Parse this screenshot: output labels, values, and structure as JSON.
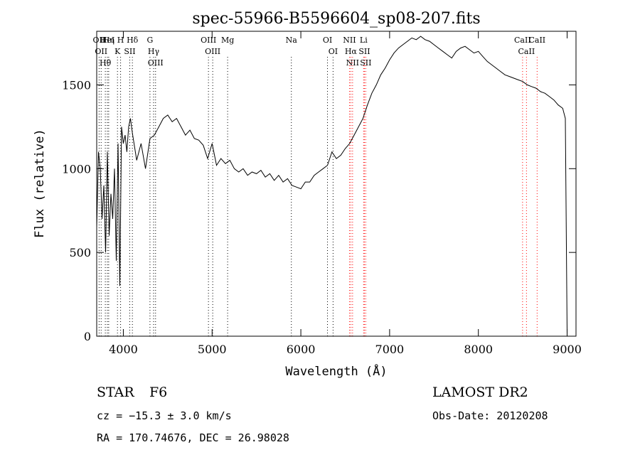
{
  "chart_data": {
    "type": "line",
    "title": "spec-55966-B5596604_sp08-207.fits",
    "xlabel": "Wavelength (Å)",
    "ylabel": "Flux (relative)",
    "xlim": [
      3700,
      9100
    ],
    "ylim": [
      0,
      1820
    ],
    "x_ticks": [
      4000,
      5000,
      6000,
      7000,
      8000,
      9000
    ],
    "y_ticks": [
      0,
      500,
      1000,
      1500
    ],
    "grid": false,
    "line_color": "#000000",
    "marker_color": "#ff0000",
    "series": [
      {
        "x": [
          3700,
          3720,
          3740,
          3760,
          3780,
          3800,
          3820,
          3840,
          3860,
          3880,
          3900,
          3920,
          3940,
          3960,
          3980,
          4000,
          4020,
          4040,
          4060,
          4080,
          4100,
          4150,
          4200,
          4250,
          4300,
          4350,
          4400,
          4450,
          4500,
          4550,
          4600,
          4650,
          4700,
          4750,
          4800,
          4850,
          4900,
          4950,
          5000,
          5050,
          5100,
          5150,
          5200,
          5250,
          5300,
          5350,
          5400,
          5450,
          5500,
          5550,
          5600,
          5650,
          5700,
          5750,
          5800,
          5850,
          5900,
          5950,
          6000,
          6050,
          6100,
          6150,
          6200,
          6250,
          6300,
          6350,
          6400,
          6450,
          6500,
          6550,
          6600,
          6650,
          6700,
          6750,
          6800,
          6850,
          6900,
          6950,
          7000,
          7050,
          7100,
          7150,
          7200,
          7250,
          7300,
          7350,
          7400,
          7450,
          7500,
          7550,
          7600,
          7650,
          7700,
          7750,
          7800,
          7850,
          7900,
          7950,
          8000,
          8050,
          8100,
          8150,
          8200,
          8250,
          8300,
          8350,
          8400,
          8450,
          8500,
          8550,
          8600,
          8650,
          8700,
          8750,
          8800,
          8850,
          8900,
          8950,
          8980,
          9000
        ],
        "y": [
          650,
          1100,
          1000,
          700,
          900,
          500,
          1100,
          600,
          850,
          700,
          1000,
          450,
          1150,
          300,
          1250,
          1150,
          1200,
          1100,
          1250,
          1300,
          1220,
          1050,
          1150,
          1000,
          1180,
          1200,
          1250,
          1300,
          1320,
          1280,
          1300,
          1250,
          1200,
          1230,
          1180,
          1170,
          1140,
          1060,
          1150,
          1020,
          1060,
          1030,
          1050,
          1000,
          980,
          1000,
          960,
          980,
          970,
          990,
          950,
          970,
          930,
          960,
          920,
          940,
          900,
          890,
          880,
          920,
          920,
          960,
          980,
          1000,
          1020,
          1100,
          1060,
          1080,
          1120,
          1150,
          1200,
          1250,
          1300,
          1380,
          1450,
          1500,
          1560,
          1600,
          1650,
          1690,
          1720,
          1740,
          1760,
          1780,
          1770,
          1790,
          1770,
          1760,
          1740,
          1720,
          1700,
          1680,
          1660,
          1700,
          1720,
          1730,
          1710,
          1690,
          1700,
          1670,
          1640,
          1620,
          1600,
          1580,
          1560,
          1550,
          1540,
          1530,
          1520,
          1500,
          1490,
          1480,
          1460,
          1450,
          1430,
          1410,
          1380,
          1360,
          1300,
          20
        ]
      }
    ],
    "line_markers": [
      {
        "wavelength": 3727,
        "labels": [
          "OII"
        ],
        "color": "#000000"
      },
      {
        "wavelength": 3750,
        "labels": [
          "OII"
        ],
        "color": "#000000"
      },
      {
        "wavelength": 3797,
        "labels": [
          "Hθ"
        ],
        "color": "#000000"
      },
      {
        "wavelength": 3820,
        "labels": [
          "HeI"
        ],
        "color": "#000000"
      },
      {
        "wavelength": 3835,
        "labels": [
          "Hη"
        ],
        "color": "#000000"
      },
      {
        "wavelength": 3934,
        "labels": [
          "K"
        ],
        "color": "#000000"
      },
      {
        "wavelength": 3969,
        "labels": [
          "H"
        ],
        "color": "#000000"
      },
      {
        "wavelength": 4072,
        "labels": [
          "SII"
        ],
        "color": "#000000"
      },
      {
        "wavelength": 4102,
        "labels": [
          "Hδ"
        ],
        "color": "#000000"
      },
      {
        "wavelength": 4300,
        "labels": [
          "G"
        ],
        "color": "#000000"
      },
      {
        "wavelength": 4341,
        "labels": [
          "Hγ"
        ],
        "color": "#000000"
      },
      {
        "wavelength": 4363,
        "labels": [
          "OIII"
        ],
        "color": "#000000"
      },
      {
        "wavelength": 4959,
        "labels": [
          "OIII"
        ],
        "color": "#000000"
      },
      {
        "wavelength": 5007,
        "labels": [
          "OIII"
        ],
        "color": "#000000"
      },
      {
        "wavelength": 5175,
        "labels": [
          "Mg"
        ],
        "color": "#000000"
      },
      {
        "wavelength": 5893,
        "labels": [
          "Na"
        ],
        "color": "#000000"
      },
      {
        "wavelength": 6300,
        "labels": [
          "OI"
        ],
        "color": "#000000"
      },
      {
        "wavelength": 6363,
        "labels": [
          "OI"
        ],
        "color": "#000000"
      },
      {
        "wavelength": 6548,
        "labels": [
          "NII"
        ],
        "color": "#ff0000"
      },
      {
        "wavelength": 6563,
        "labels": [
          "Hα"
        ],
        "color": "#ff0000"
      },
      {
        "wavelength": 6583,
        "labels": [
          "NII"
        ],
        "color": "#ff0000"
      },
      {
        "wavelength": 6707,
        "labels": [
          "Li"
        ],
        "color": "#ff0000"
      },
      {
        "wavelength": 6716,
        "labels": [
          "SII"
        ],
        "color": "#ff0000"
      },
      {
        "wavelength": 6731,
        "labels": [
          "SII"
        ],
        "color": "#ff0000"
      },
      {
        "wavelength": 8498,
        "labels": [
          "CaII"
        ],
        "color": "#ff0000"
      },
      {
        "wavelength": 8542,
        "labels": [
          "CaII"
        ],
        "color": "#ff0000"
      },
      {
        "wavelength": 8662,
        "labels": [
          "CaII"
        ],
        "color": "#ff0000"
      }
    ]
  },
  "info": {
    "object_class": "STAR",
    "subclass": "F6",
    "redshift_text": "cz = −15.3 ± 3.0 km/s",
    "coords_text": "RA = 170.74676, DEC =  26.98028",
    "survey": "LAMOST DR2",
    "obs_date_text": "Obs-Date: 20120208"
  }
}
